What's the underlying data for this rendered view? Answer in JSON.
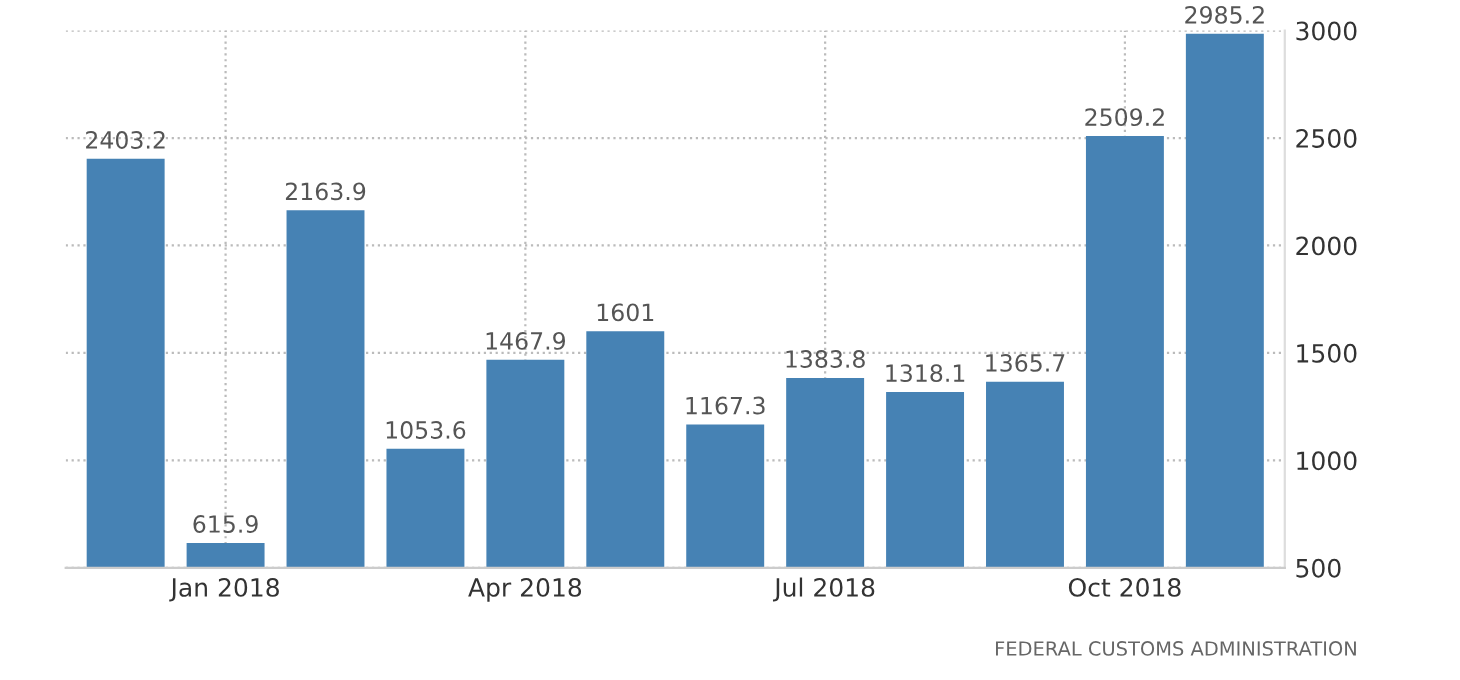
{
  "chart_data": {
    "type": "bar",
    "categories": [
      null,
      "Jan 2018",
      null,
      null,
      "Apr 2018",
      null,
      null,
      "Jul 2018",
      null,
      null,
      "Oct 2018",
      null
    ],
    "values": [
      2403.2,
      615.9,
      2163.9,
      1053.6,
      1467.9,
      1601,
      1167.3,
      1383.8,
      1318.1,
      1365.7,
      2509.2,
      2985.2
    ],
    "color": "#4682b4",
    "ylim": [
      500,
      3000
    ],
    "yticks": [
      500,
      1000,
      1500,
      2000,
      2500,
      3000
    ],
    "grid": true,
    "data_labels": true,
    "annotations": [
      "FEDERAL CUSTOMS ADMINISTRATION"
    ]
  }
}
